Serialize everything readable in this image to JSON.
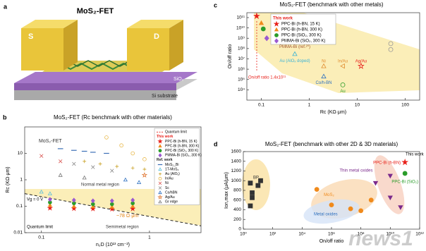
{
  "panel_a": {
    "panel": "a",
    "title": "MoS₂-FET",
    "source": "S",
    "drain": "D",
    "oxide": "SiO₂",
    "substrate": "Si substrate"
  },
  "chart_data": [
    {
      "type": "scatter",
      "panel": "b",
      "title": "MoS₂-FET (Rc benchmark with other materials)",
      "x_label": "n₂D (10¹³ cm⁻²)",
      "y_label": "Rc (KΩ·μm)",
      "xlog": true,
      "ylog": true,
      "xlim": [
        0.07,
        3
      ],
      "ylim": [
        0.01,
        100
      ],
      "xticks": [
        0.1,
        1
      ],
      "yticks": [
        0.01,
        0.1,
        1,
        10
      ],
      "legend": "upper right",
      "annotations": [
        "MoS₂-FET",
        "Normal metal region",
        "Vg = 0 V",
        "Quantum limit",
        "Semimetal region",
        "~78 Ω·μm"
      ],
      "series": [
        {
          "name": "Quantum limit",
          "color": "#222222",
          "marker": "line",
          "dash": true,
          "x": [
            0.07,
            3
          ],
          "values": [
            0.3,
            0.018
          ]
        },
        {
          "name": "PPC-Bi (h-BN, 15 K)",
          "group": "This work",
          "color": "#e8201a",
          "marker": "star",
          "x": [
            0.12,
            0.2,
            0.3,
            0.45,
            0.7
          ],
          "values": [
            0.085,
            0.082,
            0.08,
            0.078,
            0.08
          ]
        },
        {
          "name": "PPC-Bi (h-BN, 300 K)",
          "group": "This work",
          "color": "#f08a1c",
          "marker": "triangle",
          "x": [
            0.12,
            0.2,
            0.3,
            0.45,
            0.7
          ],
          "values": [
            0.11,
            0.1,
            0.098,
            0.095,
            0.1
          ]
        },
        {
          "name": "PPC-Bi (SiO₂, 300 K)",
          "group": "This work",
          "color": "#2a9d2a",
          "marker": "circle",
          "x": [
            0.12,
            0.2,
            0.3,
            0.45,
            0.7
          ],
          "values": [
            0.14,
            0.13,
            0.12,
            0.12,
            0.13
          ]
        },
        {
          "name": "PMMA-Bi (SiO₂, 300 K)",
          "group": "This work",
          "color": "#9b59d0",
          "marker": "diamond",
          "x": [
            0.12,
            0.2,
            0.3,
            0.45,
            0.7
          ],
          "values": [
            0.18,
            0.17,
            0.16,
            0.16,
            0.17
          ]
        },
        {
          "name": "MoS₂_Bi",
          "group": "Ref. work",
          "color": "#3b6fb6",
          "marker": "dash",
          "x": [
            0.15,
            0.2,
            0.25,
            0.3,
            0.4
          ],
          "values": [
            15,
            13,
            12,
            11,
            10
          ]
        },
        {
          "name": "1T-MoS₂",
          "group": "Ref. work",
          "color": "#5bc0de",
          "marker": "triangle",
          "filled": false,
          "x": [
            0.1,
            0.12
          ],
          "values": [
            0.35,
            0.3
          ]
        },
        {
          "name": "Au (AlOₓ)",
          "group": "Ref. work",
          "color": "#c9a227",
          "marker": "plus",
          "x": [
            0.25,
            0.35,
            0.5,
            0.7,
            0.9
          ],
          "values": [
            5,
            4,
            3.2,
            2.8,
            2.5
          ]
        },
        {
          "name": "In/Au",
          "group": "Ref. work",
          "color": "#e8b84a",
          "marker": "circle",
          "filled": false,
          "x": [
            0.4,
            0.55,
            0.7,
            0.9,
            1.2
          ],
          "values": [
            40,
            20,
            10,
            6,
            3
          ]
        },
        {
          "name": "Ni",
          "group": "Ref. work",
          "color": "#d9534f",
          "marker": "x",
          "x": [
            0.1,
            0.15
          ],
          "values": [
            8,
            5
          ]
        },
        {
          "name": "Sc",
          "group": "Ref. work",
          "color": "#888888",
          "marker": "x",
          "x": [
            0.2,
            0.3,
            0.45
          ],
          "values": [
            4,
            3,
            2.2
          ]
        },
        {
          "name": "Co/hBN",
          "group": "Ref. work",
          "color": "#2c6fbf",
          "marker": "triangle",
          "filled": false,
          "x": [
            0.6,
            0.8
          ],
          "values": [
            1,
            0.8
          ]
        },
        {
          "name": "Ag/Au",
          "group": "Ref. work",
          "color": "#e07b39",
          "marker": "star",
          "filled": false,
          "x": [
            0.9
          ],
          "values": [
            1.5
          ]
        },
        {
          "name": "Gr edge",
          "group": "Ref. work",
          "color": "#777777",
          "marker": "triangle",
          "filled": false,
          "x": [
            0.15,
            0.25
          ],
          "values": [
            1.5,
            1.2
          ]
        }
      ]
    },
    {
      "type": "scatter",
      "panel": "c",
      "title": "MoS₂-FET (benchmark with other metals)",
      "x_label": "Rc (KΩ·μm)",
      "y_label": "On/off ratio",
      "xlog": true,
      "ylog": true,
      "xlim": [
        0.05,
        200
      ],
      "ylim": [
        1000,
        300000000000
      ],
      "xticks": [
        0.1,
        1,
        10,
        100
      ],
      "yticks": [
        {
          "value": 10000,
          "label": "10⁴"
        },
        {
          "value": 100000,
          "label": "10⁵"
        },
        {
          "value": 1000000,
          "label": "10⁶"
        },
        {
          "value": 10000000,
          "label": "10⁷"
        },
        {
          "value": 100000000,
          "label": "10⁸"
        },
        {
          "value": 1000000000,
          "label": "10⁹"
        },
        {
          "value": 10000000000,
          "label": "10¹⁰"
        },
        {
          "value": 100000000000,
          "label": "10¹¹"
        }
      ],
      "legend": "upper left",
      "annotations": [
        "On/off ratio 1.4x10¹¹"
      ],
      "series": [
        {
          "name": "PPC-Bi (h-BN, 15 K)",
          "group": "This work",
          "color": "#e8201a",
          "marker": "star",
          "x": [
            0.08
          ],
          "values": [
            140000000000
          ]
        },
        {
          "name": "PPC-Bi (h-BN, 300 K)",
          "group": "This work",
          "color": "#f08a1c",
          "marker": "triangle",
          "x": [
            0.1
          ],
          "values": [
            30000000000
          ]
        },
        {
          "name": "PPC-Bi (SiO₂, 300 K)",
          "group": "This work",
          "color": "#2a9d2a",
          "marker": "circle",
          "x": [
            0.11
          ],
          "values": [
            8000000000
          ]
        },
        {
          "name": "PMMA-Bi (SiO₂, 300 K)",
          "group": "This work",
          "color": "#9b59d0",
          "marker": "diamond",
          "x": [
            0.13
          ],
          "values": [
            1000000000
          ]
        },
        {
          "name": "PMMA-Bi (ref.²⁰)",
          "label": "direct",
          "color": "#a0522d",
          "marker": "square",
          "filled": false,
          "x": [
            0.2
          ],
          "values": [
            600000000
          ]
        },
        {
          "name": "Au (AlOₓ doped)",
          "label": "direct",
          "color": "#3bb3d6",
          "marker": "triangle",
          "filled": false,
          "x": [
            0.5
          ],
          "values": [
            30000000
          ]
        },
        {
          "name": "Ni",
          "label": "direct",
          "color": "#e08a2c",
          "marker": "triangle",
          "filled": false,
          "x": [
            2
          ],
          "values": [
            2000000
          ]
        },
        {
          "name": "In/Au",
          "label": "direct",
          "color": "#e08a2c",
          "marker": "triangle-left",
          "filled": false,
          "x": [
            5
          ],
          "values": [
            2000000
          ]
        },
        {
          "name": "Co/h-BN",
          "label": "direct",
          "color": "#2c6fbf",
          "marker": "triangle",
          "filled": false,
          "x": [
            2
          ],
          "values": [
            200000
          ]
        },
        {
          "name": "Au",
          "label": "direct",
          "color": "#2a9d2a",
          "marker": "circle",
          "filled": false,
          "x": [
            5
          ],
          "values": [
            30000
          ]
        },
        {
          "name": "Ag/Au",
          "label": "direct",
          "color": "#e8201a",
          "marker": "star",
          "filled": false,
          "x": [
            12
          ],
          "values": [
            2000000
          ]
        },
        {
          "label": "direct",
          "color": "#999999",
          "marker": "circle",
          "filled": false,
          "x": [
            50,
            50
          ],
          "values": [
            300000000,
            80000000
          ]
        }
      ]
    },
    {
      "type": "scatter",
      "panel": "d",
      "title": "MoS₂-FET (benchmark with other 2D & 3D materials)",
      "x_label": "On/off ratio",
      "y_label": "Ion,max (μA/μm)",
      "xlog": true,
      "ylog": false,
      "xlim": [
        1,
        1000000000000
      ],
      "ylim": [
        0,
        1600
      ],
      "xticks": [
        {
          "value": 1,
          "label": "10⁰"
        },
        {
          "value": 100,
          "label": "10²"
        },
        {
          "value": 10000,
          "label": "10⁴"
        },
        {
          "value": 1000000,
          "label": "10⁶"
        },
        {
          "value": 100000000,
          "label": "10⁸"
        },
        {
          "value": 10000000000,
          "label": "10¹⁰"
        },
        {
          "value": 1000000000000,
          "label": "10¹²"
        }
      ],
      "yticks": [
        0,
        200,
        400,
        600,
        800,
        1000,
        1200,
        1400,
        1600
      ],
      "annotations": [
        "Metal oxides",
        "This work"
      ],
      "series": [
        {
          "name": "BP",
          "label": "direct",
          "color": "#333333",
          "marker": "square",
          "x": [
            3,
            4,
            10,
            15,
            4,
            3
          ],
          "values": [
            950,
            750,
            900,
            1000,
            650,
            480
          ]
        },
        {
          "name": "MoS₂",
          "label": "direct",
          "color": "#f08a1c",
          "marker": "circle",
          "x": [
            100000,
            1000000,
            20000000,
            100000000,
            500000000
          ],
          "values": [
            820,
            500,
            420,
            380,
            600
          ]
        },
        {
          "name": "Thin metal oxides",
          "label": "direct",
          "color": "#7b2a8c",
          "marker": "triangle-down",
          "x": [
            1000000000,
            10000000000,
            50000000000,
            10000000000
          ],
          "values": [
            950,
            650,
            450,
            1100
          ]
        },
        {
          "name": "PPC-Bi (h-BN)",
          "label": "direct",
          "color": "#e8201a",
          "marker": "star",
          "x": [
            100000000000
          ],
          "values": [
            1380
          ]
        },
        {
          "name": "PPC-Bi (SiO₂)",
          "label": "direct",
          "color": "#2a9d2a",
          "marker": "circle",
          "x": [
            100000000000
          ],
          "values": [
            1150
          ]
        }
      ]
    }
  ],
  "watermark": "news1"
}
